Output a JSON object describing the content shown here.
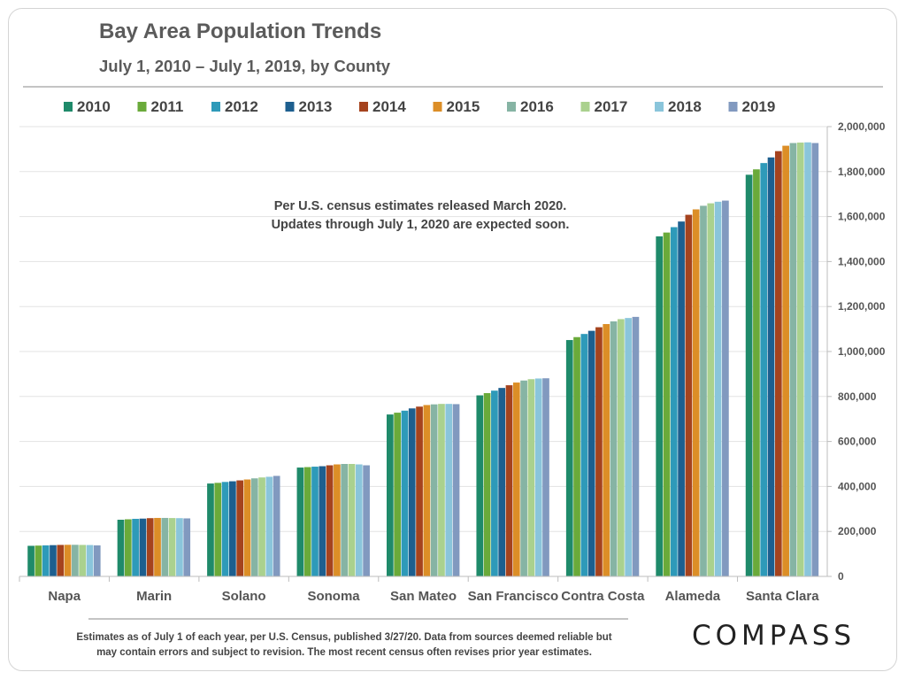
{
  "page": {
    "title": "Bay Area Population Trends",
    "subtitle": "July 1, 2010 – July 1, 2019, by County",
    "annotation_line1": "Per U.S. census estimates released March 2020.",
    "annotation_line2": "Updates through July 1, 2020 are expected soon.",
    "footnote_line1": "Estimates as of July 1 of each year, per U.S. Census, published 3/27/20. Data from sources deemed reliable but",
    "footnote_line2": "may contain errors and subject to revision.  The most recent census often revises prior year estimates.",
    "logo_text": "COMPASS"
  },
  "chart_data": {
    "type": "bar",
    "categories": [
      "Napa",
      "Marin",
      "Solano",
      "Sonoma",
      "San Mateo",
      "San Francisco",
      "Contra Costa",
      "Alameda",
      "Santa Clara"
    ],
    "ylim": [
      0,
      2000000
    ],
    "yticks": [
      0,
      200000,
      400000,
      600000,
      800000,
      1000000,
      1200000,
      1400000,
      1600000,
      1800000,
      2000000
    ],
    "ytick_labels": [
      "0",
      "200,000",
      "400,000",
      "600,000",
      "800,000",
      "1,000,000",
      "1,200,000",
      "1,400,000",
      "1,600,000",
      "1,800,000",
      "2,000,000"
    ],
    "y_axis_side": "right",
    "grid": true,
    "legend_position": "top",
    "series": [
      {
        "name": "2010",
        "color": "#1f8a6a",
        "values": [
          136000,
          252000,
          413000,
          484000,
          720000,
          805000,
          1051000,
          1512000,
          1786000
        ]
      },
      {
        "name": "2011",
        "color": "#6aaa3a",
        "values": [
          137000,
          254000,
          416000,
          486000,
          728000,
          815000,
          1064000,
          1529000,
          1810000
        ]
      },
      {
        "name": "2012",
        "color": "#2e9ab9",
        "values": [
          138000,
          256000,
          420000,
          488000,
          737000,
          826000,
          1078000,
          1553000,
          1838000
        ]
      },
      {
        "name": "2013",
        "color": "#1d5f8f",
        "values": [
          139000,
          257000,
          423000,
          490000,
          747000,
          838000,
          1092000,
          1578000,
          1863000
        ]
      },
      {
        "name": "2014",
        "color": "#a5431e",
        "values": [
          140000,
          259000,
          427000,
          494000,
          755000,
          850000,
          1108000,
          1608000,
          1891000
        ]
      },
      {
        "name": "2015",
        "color": "#dc8e27",
        "values": [
          140500,
          260000,
          431000,
          498000,
          762000,
          862000,
          1122000,
          1632000,
          1915000
        ]
      },
      {
        "name": "2016",
        "color": "#86b4a4",
        "values": [
          140500,
          260000,
          436000,
          500000,
          765000,
          871000,
          1134000,
          1648000,
          1927000
        ]
      },
      {
        "name": "2017",
        "color": "#aad18e",
        "values": [
          140000,
          259500,
          440000,
          500000,
          767000,
          877000,
          1144000,
          1659000,
          1929000
        ]
      },
      {
        "name": "2018",
        "color": "#8ac5db",
        "values": [
          139500,
          259000,
          443000,
          498000,
          767000,
          880000,
          1149000,
          1666000,
          1930000
        ]
      },
      {
        "name": "2019",
        "color": "#8199bf",
        "values": [
          138000,
          258000,
          447000,
          494000,
          766000,
          881000,
          1154000,
          1671000,
          1927000
        ]
      }
    ]
  }
}
